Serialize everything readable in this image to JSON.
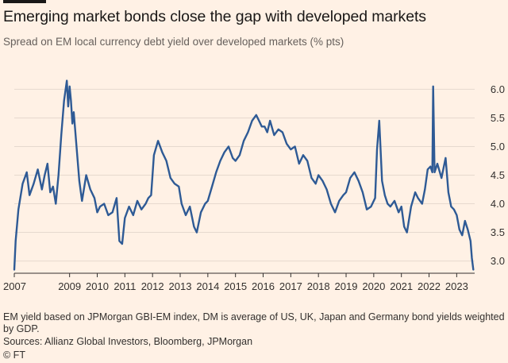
{
  "page": {
    "title": "Emerging market bonds close the gap with developed markets",
    "subtitle": "Spread on EM local currency debt yield over developed markets (% pts)",
    "note": "EM yield based on JPMorgan GBI-EM index, DM is average of US, UK, Japan and Germany bond yields weighted by GDP.",
    "source": "Sources: Allianz Global Investors, Bloomberg, JPMorgan",
    "credit": "© FT"
  },
  "colors": {
    "background": "#fff1e5",
    "line": "#2e5a95",
    "grid": "#e6d9ce",
    "axis": "#33302e"
  },
  "chart_data": {
    "type": "line",
    "title": "Emerging market bonds close the gap with developed markets",
    "subtitle": "Spread on EM local currency debt yield over developed markets (% pts)",
    "xlabel": "",
    "ylabel": "% pts",
    "xlim": [
      2007.0,
      2023.65
    ],
    "ylim": [
      2.8,
      6.2
    ],
    "y_ticks": [
      3.0,
      3.5,
      4.0,
      4.5,
      5.0,
      5.5,
      6.0
    ],
    "y_tick_labels": [
      "3.0",
      "3.5",
      "4.0",
      "4.5",
      "5.0",
      "5.5",
      "6.0"
    ],
    "x_ticks": [
      2007,
      2009,
      2010,
      2011,
      2012,
      2013,
      2014,
      2015,
      2016,
      2017,
      2018,
      2019,
      2020,
      2021,
      2022,
      2023
    ],
    "x_tick_labels": [
      "2007",
      "2009",
      "2010",
      "2011",
      "2012",
      "2013",
      "2014",
      "2015",
      "2016",
      "2017",
      "2018",
      "2019",
      "2020",
      "2021",
      "2022",
      "2023"
    ],
    "grid": true,
    "series": [
      {
        "name": "EM local currency debt yield spread over DM",
        "x": [
          2007.0,
          2007.05,
          2007.15,
          2007.3,
          2007.45,
          2007.55,
          2007.7,
          2007.85,
          2008.0,
          2008.1,
          2008.2,
          2008.3,
          2008.4,
          2008.5,
          2008.6,
          2008.7,
          2008.8,
          2008.9,
          2008.95,
          2009.0,
          2009.05,
          2009.1,
          2009.15,
          2009.25,
          2009.35,
          2009.45,
          2009.6,
          2009.75,
          2009.9,
          2010.0,
          2010.1,
          2010.25,
          2010.4,
          2010.55,
          2010.7,
          2010.8,
          2010.9,
          2011.0,
          2011.15,
          2011.3,
          2011.45,
          2011.6,
          2011.75,
          2011.85,
          2011.95,
          2012.05,
          2012.2,
          2012.35,
          2012.5,
          2012.65,
          2012.8,
          2012.95,
          2013.05,
          2013.2,
          2013.35,
          2013.5,
          2013.6,
          2013.75,
          2013.9,
          2014.0,
          2014.15,
          2014.3,
          2014.45,
          2014.6,
          2014.75,
          2014.9,
          2015.0,
          2015.15,
          2015.3,
          2015.45,
          2015.6,
          2015.75,
          2015.85,
          2015.95,
          2016.05,
          2016.15,
          2016.25,
          2016.4,
          2016.55,
          2016.7,
          2016.85,
          2017.0,
          2017.15,
          2017.3,
          2017.45,
          2017.6,
          2017.75,
          2017.9,
          2018.0,
          2018.15,
          2018.3,
          2018.45,
          2018.6,
          2018.75,
          2018.9,
          2019.0,
          2019.15,
          2019.3,
          2019.45,
          2019.6,
          2019.75,
          2019.9,
          2020.05,
          2020.12,
          2020.2,
          2020.3,
          2020.4,
          2020.5,
          2020.6,
          2020.75,
          2020.9,
          2021.0,
          2021.1,
          2021.2,
          2021.35,
          2021.5,
          2021.6,
          2021.75,
          2021.85,
          2021.95,
          2022.05,
          2022.12,
          2022.15,
          2022.2,
          2022.3,
          2022.45,
          2022.6,
          2022.7,
          2022.8,
          2022.9,
          2023.0,
          2023.1,
          2023.2,
          2023.3,
          2023.4,
          2023.5,
          2023.55,
          2023.6
        ],
        "values": [
          2.85,
          3.35,
          3.9,
          4.35,
          4.55,
          4.15,
          4.35,
          4.6,
          4.25,
          4.5,
          4.7,
          4.2,
          4.3,
          4.0,
          4.5,
          5.2,
          5.8,
          6.15,
          5.7,
          6.05,
          5.8,
          5.4,
          5.6,
          5.0,
          4.4,
          4.05,
          4.5,
          4.25,
          4.1,
          3.85,
          3.95,
          4.0,
          3.8,
          3.85,
          4.1,
          3.35,
          3.3,
          3.75,
          3.95,
          3.8,
          4.05,
          3.9,
          4.0,
          4.1,
          4.15,
          4.85,
          5.1,
          4.9,
          4.75,
          4.45,
          4.35,
          4.3,
          4.0,
          3.8,
          3.95,
          3.6,
          3.5,
          3.85,
          4.0,
          4.05,
          4.3,
          4.55,
          4.75,
          4.9,
          5.0,
          4.8,
          4.75,
          4.85,
          5.1,
          5.25,
          5.45,
          5.55,
          5.45,
          5.35,
          5.35,
          5.25,
          5.45,
          5.2,
          5.3,
          5.25,
          5.05,
          4.95,
          5.0,
          4.7,
          4.85,
          4.75,
          4.45,
          4.35,
          4.5,
          4.4,
          4.25,
          4.0,
          3.85,
          4.05,
          4.15,
          4.2,
          4.45,
          4.55,
          4.4,
          4.2,
          3.9,
          3.95,
          4.1,
          4.95,
          5.45,
          4.4,
          4.15,
          4.0,
          3.95,
          4.05,
          3.85,
          3.95,
          3.6,
          3.5,
          3.95,
          4.2,
          4.1,
          4.0,
          4.25,
          4.6,
          4.65,
          4.55,
          6.05,
          4.55,
          4.7,
          4.45,
          4.8,
          4.2,
          3.95,
          3.9,
          3.8,
          3.55,
          3.45,
          3.7,
          3.55,
          3.35,
          3.05,
          2.85
        ]
      }
    ]
  }
}
